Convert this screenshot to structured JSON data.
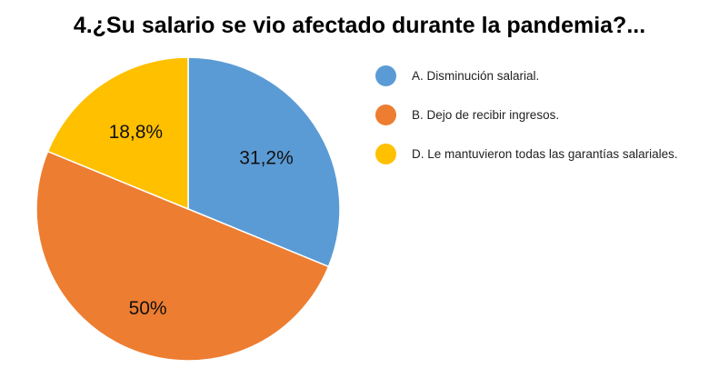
{
  "chart_data": {
    "type": "pie",
    "title": "4.¿Su salario se vio afectado durante la pandemia?...",
    "categories": [
      "A. Disminución salarial.",
      "B. Dejo de recibir ingresos.",
      "D. Le mantuvieron todas las garantías salariales."
    ],
    "values": [
      31.2,
      50,
      18.8
    ],
    "labels": [
      "31,2%",
      "50%",
      "18,8%"
    ],
    "colors": [
      "#5B9BD5",
      "#ED7D31",
      "#FFC000"
    ],
    "legend": "right"
  }
}
